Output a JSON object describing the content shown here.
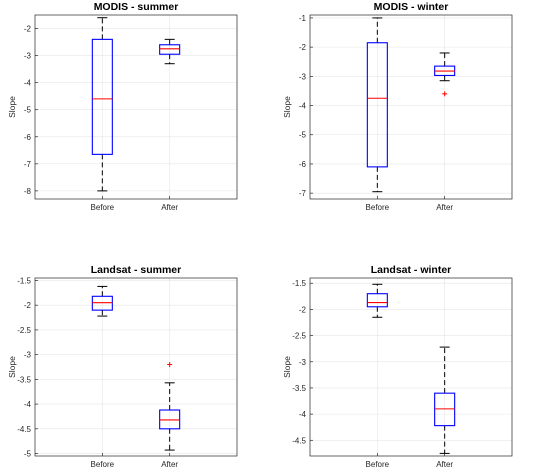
{
  "chart_data": [
    {
      "type": "boxplot",
      "title": "MODIS - summer",
      "ylabel": "Slope",
      "xlabel": "",
      "categories": [
        "Before",
        "After"
      ],
      "ylim": [
        -8.3,
        -1.5
      ],
      "yticks": [
        -8,
        -7,
        -6,
        -5,
        -4,
        -3,
        -2
      ],
      "grid": true,
      "boxes": [
        {
          "category": "Before",
          "whisker_low": -8.0,
          "q1": -6.65,
          "median": -4.6,
          "q3": -2.4,
          "whisker_high": -1.6,
          "outliers": []
        },
        {
          "category": "After",
          "whisker_low": -3.3,
          "q1": -2.95,
          "median": -2.75,
          "q3": -2.6,
          "whisker_high": -2.4,
          "outliers": []
        }
      ]
    },
    {
      "type": "boxplot",
      "title": "MODIS - winter",
      "ylabel": "Slope",
      "xlabel": "",
      "categories": [
        "Before",
        "After"
      ],
      "ylim": [
        -7.2,
        -0.9
      ],
      "yticks": [
        -7,
        -6,
        -5,
        -4,
        -3,
        -2,
        -1
      ],
      "grid": true,
      "boxes": [
        {
          "category": "Before",
          "whisker_low": -6.95,
          "q1": -6.1,
          "median": -3.75,
          "q3": -1.85,
          "whisker_high": -1.0,
          "outliers": []
        },
        {
          "category": "After",
          "whisker_low": -3.15,
          "q1": -2.97,
          "median": -2.82,
          "q3": -2.65,
          "whisker_high": -2.2,
          "outliers": [
            -3.6
          ]
        }
      ]
    },
    {
      "type": "boxplot",
      "title": "Landsat - summer",
      "ylabel": "Slope",
      "xlabel": "",
      "categories": [
        "Before",
        "After"
      ],
      "ylim": [
        -5.05,
        -1.45
      ],
      "yticks": [
        -5,
        -4.5,
        -4,
        -3.5,
        -3,
        -2.5,
        -2,
        -1.5
      ],
      "grid": true,
      "boxes": [
        {
          "category": "Before",
          "whisker_low": -2.22,
          "q1": -2.1,
          "median": -1.95,
          "q3": -1.82,
          "whisker_high": -1.62,
          "outliers": []
        },
        {
          "category": "After",
          "whisker_low": -4.93,
          "q1": -4.5,
          "median": -4.32,
          "q3": -4.12,
          "whisker_high": -3.57,
          "outliers": [
            -3.2
          ]
        }
      ]
    },
    {
      "type": "boxplot",
      "title": "Landsat - winter",
      "ylabel": "Slope",
      "xlabel": "",
      "categories": [
        "Before",
        "After"
      ],
      "ylim": [
        -4.8,
        -1.4
      ],
      "yticks": [
        -4.5,
        -4,
        -3.5,
        -3,
        -2.5,
        -2,
        -1.5
      ],
      "grid": true,
      "boxes": [
        {
          "category": "Before",
          "whisker_low": -2.15,
          "q1": -1.95,
          "median": -1.87,
          "q3": -1.7,
          "whisker_high": -1.52,
          "outliers": []
        },
        {
          "category": "After",
          "whisker_low": -4.75,
          "q1": -4.22,
          "median": -3.9,
          "q3": -3.6,
          "whisker_high": -2.72,
          "outliers": []
        }
      ]
    }
  ],
  "colors": {
    "box": "#0000ff",
    "median": "#ff0000",
    "whisker": "#000000",
    "outlier": "#ff0000",
    "grid": "#e6e6e6",
    "axis": "#262626"
  }
}
